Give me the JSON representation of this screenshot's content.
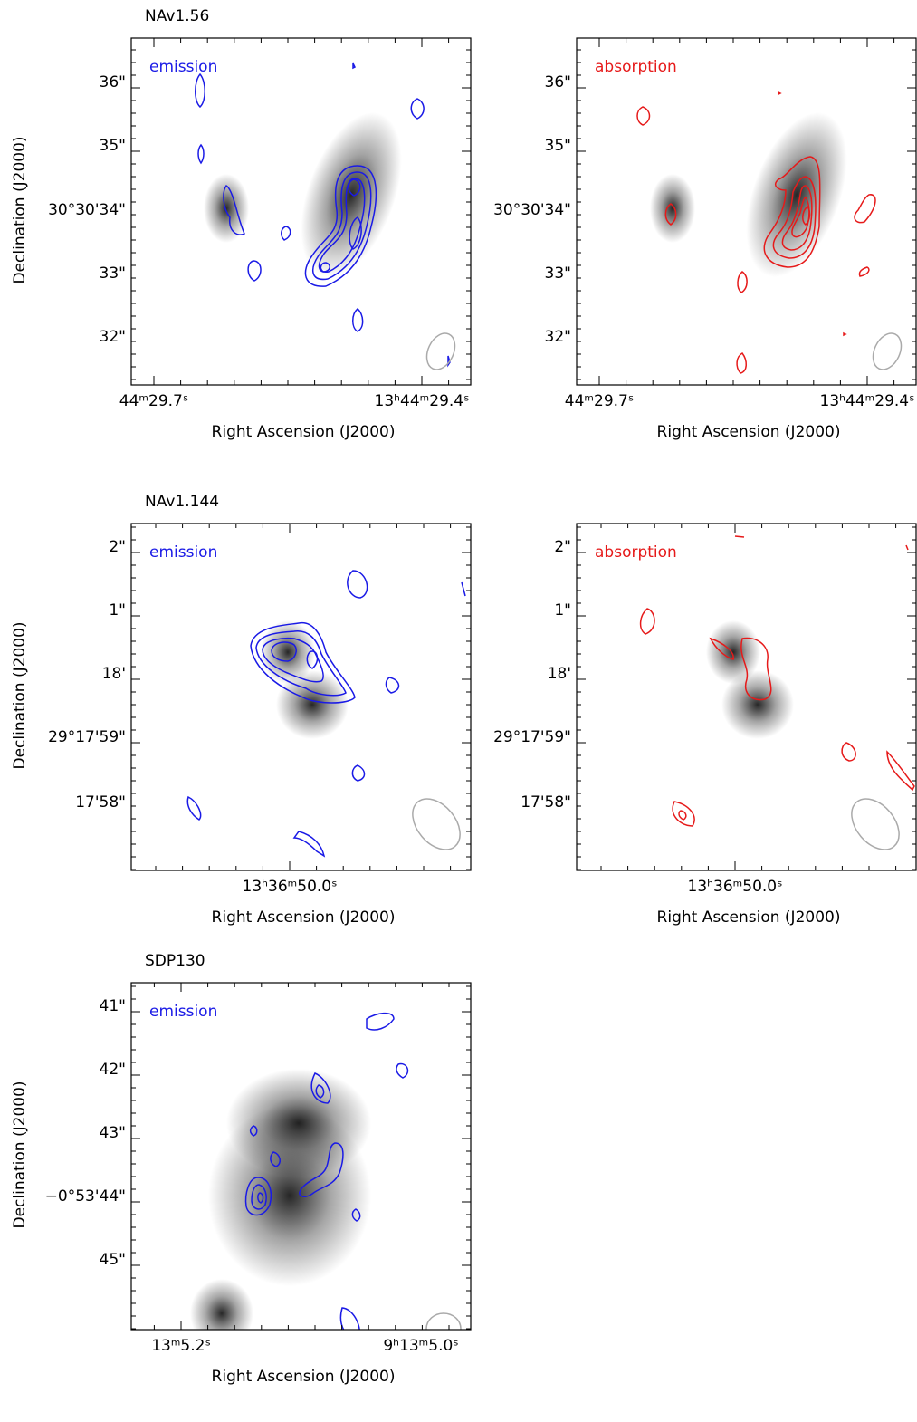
{
  "panels": [
    {
      "title": "NAv1.56",
      "label": "emission",
      "color": "#1a1ae6",
      "ylabel": "Declination (J2000)",
      "xlabel": "Right Ascension (J2000)",
      "yticks": [
        "36\"",
        "35\"",
        "30°30'34\"",
        "33\"",
        "32\""
      ],
      "xticks": [
        "44ᵐ29.7ˢ",
        "13ʰ44ᵐ29.4ˢ"
      ]
    },
    {
      "label": "absorption",
      "color": "#e61a1a",
      "xlabel": "Right Ascension (J2000)",
      "yticks": [
        "36\"",
        "35\"",
        "30°30'34\"",
        "33\"",
        "32\""
      ],
      "xticks": [
        "44ᵐ29.7ˢ",
        "13ʰ44ᵐ29.4ˢ"
      ]
    },
    {
      "title": "NAv1.144",
      "label": "emission",
      "color": "#1a1ae6",
      "ylabel": "Declination (J2000)",
      "xlabel": "Right Ascension (J2000)",
      "yticks": [
        "2\"",
        "1\"",
        "18'",
        "29°17'59\"",
        "17'58\""
      ],
      "xticks": [
        "13ʰ36ᵐ50.0ˢ"
      ]
    },
    {
      "label": "absorption",
      "color": "#e61a1a",
      "xlabel": "Right Ascension (J2000)",
      "yticks": [
        "2\"",
        "1\"",
        "18'",
        "29°17'59\"",
        "17'58\""
      ],
      "xticks": [
        "13ʰ36ᵐ50.0ˢ"
      ]
    },
    {
      "title": "SDP130",
      "label": "emission",
      "color": "#1a1ae6",
      "ylabel": "Declination (J2000)",
      "xlabel": "Right Ascension (J2000)",
      "yticks": [
        "41\"",
        "42\"",
        "43\"",
        "−0°53'44\"",
        "45\""
      ],
      "xticks": [
        "13ᵐ5.2ˢ",
        "9ʰ13ᵐ5.0ˢ"
      ]
    }
  ]
}
